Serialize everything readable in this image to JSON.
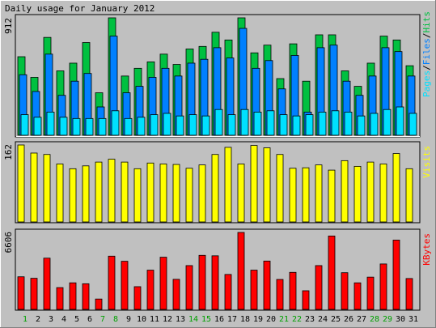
{
  "title": "Daily usage for January 2012",
  "colors": {
    "background": "#c0c0c0",
    "hits": "#00c040",
    "files": "#0080ff",
    "pages": "#00e0ff",
    "visits": "#ffff00",
    "kbytes": "#ff0000",
    "weekend_label": "#00a000",
    "weekday_label": "#000000"
  },
  "chart_data": [
    {
      "type": "bar",
      "title": "Daily usage for January 2012",
      "y_max_label": "912",
      "ylim": [
        0,
        912
      ],
      "legend": [
        "Pages",
        "Files",
        "Hits"
      ],
      "legend_separator": "/",
      "categories": [
        "1",
        "2",
        "3",
        "4",
        "5",
        "6",
        "7",
        "8",
        "9",
        "10",
        "11",
        "12",
        "13",
        "14",
        "15",
        "16",
        "17",
        "18",
        "19",
        "20",
        "21",
        "22",
        "23",
        "24",
        "25",
        "26",
        "27",
        "28",
        "29",
        "30",
        "31"
      ],
      "series": [
        {
          "name": "Hits",
          "values": [
            610,
            450,
            760,
            500,
            560,
            720,
            330,
            912,
            460,
            520,
            570,
            630,
            550,
            670,
            690,
            800,
            740,
            912,
            640,
            700,
            440,
            710,
            420,
            780,
            780,
            500,
            380,
            560,
            770,
            740,
            540
          ]
        },
        {
          "name": "Files",
          "values": [
            470,
            340,
            630,
            310,
            420,
            480,
            220,
            770,
            330,
            380,
            450,
            520,
            460,
            560,
            590,
            680,
            600,
            830,
            520,
            580,
            360,
            620,
            180,
            680,
            700,
            420,
            310,
            460,
            680,
            650,
            460
          ]
        },
        {
          "name": "Pages",
          "values": [
            160,
            140,
            180,
            140,
            130,
            130,
            130,
            190,
            130,
            140,
            160,
            170,
            150,
            160,
            150,
            200,
            160,
            200,
            180,
            190,
            160,
            150,
            160,
            180,
            190,
            180,
            150,
            170,
            200,
            220,
            170
          ]
        }
      ]
    },
    {
      "type": "bar",
      "y_max_label": "162",
      "ylim": [
        0,
        162
      ],
      "legend": [
        "Visits"
      ],
      "categories": [
        "1",
        "2",
        "3",
        "4",
        "5",
        "6",
        "7",
        "8",
        "9",
        "10",
        "11",
        "12",
        "13",
        "14",
        "15",
        "16",
        "17",
        "18",
        "19",
        "20",
        "21",
        "22",
        "23",
        "24",
        "25",
        "26",
        "27",
        "28",
        "29",
        "30",
        "31"
      ],
      "series": [
        {
          "name": "Visits",
          "values": [
            162,
            145,
            142,
            122,
            112,
            118,
            126,
            132,
            126,
            112,
            124,
            122,
            121,
            113,
            120,
            142,
            157,
            122,
            161,
            156,
            142,
            113,
            114,
            120,
            109,
            129,
            117,
            126,
            122,
            144,
            112
          ]
        }
      ]
    },
    {
      "type": "bar",
      "y_max_label": "6606",
      "ylim": [
        0,
        6606
      ],
      "legend": [
        "KBytes"
      ],
      "categories": [
        "1",
        "2",
        "3",
        "4",
        "5",
        "6",
        "7",
        "8",
        "9",
        "10",
        "11",
        "12",
        "13",
        "14",
        "15",
        "16",
        "17",
        "18",
        "19",
        "20",
        "21",
        "22",
        "23",
        "24",
        "25",
        "26",
        "27",
        "28",
        "29",
        "30",
        "31"
      ],
      "series": [
        {
          "name": "KBytes",
          "values": [
            2800,
            2670,
            4400,
            1870,
            2280,
            2200,
            890,
            4570,
            4130,
            1950,
            3370,
            4480,
            2580,
            3760,
            4640,
            4600,
            3000,
            6606,
            3370,
            4150,
            2570,
            3180,
            1600,
            3760,
            6300,
            3150,
            2280,
            2770,
            3900,
            5950,
            2650
          ]
        }
      ]
    }
  ],
  "weekend_days": [
    "1",
    "7",
    "8",
    "14",
    "15",
    "21",
    "22",
    "28",
    "29"
  ]
}
